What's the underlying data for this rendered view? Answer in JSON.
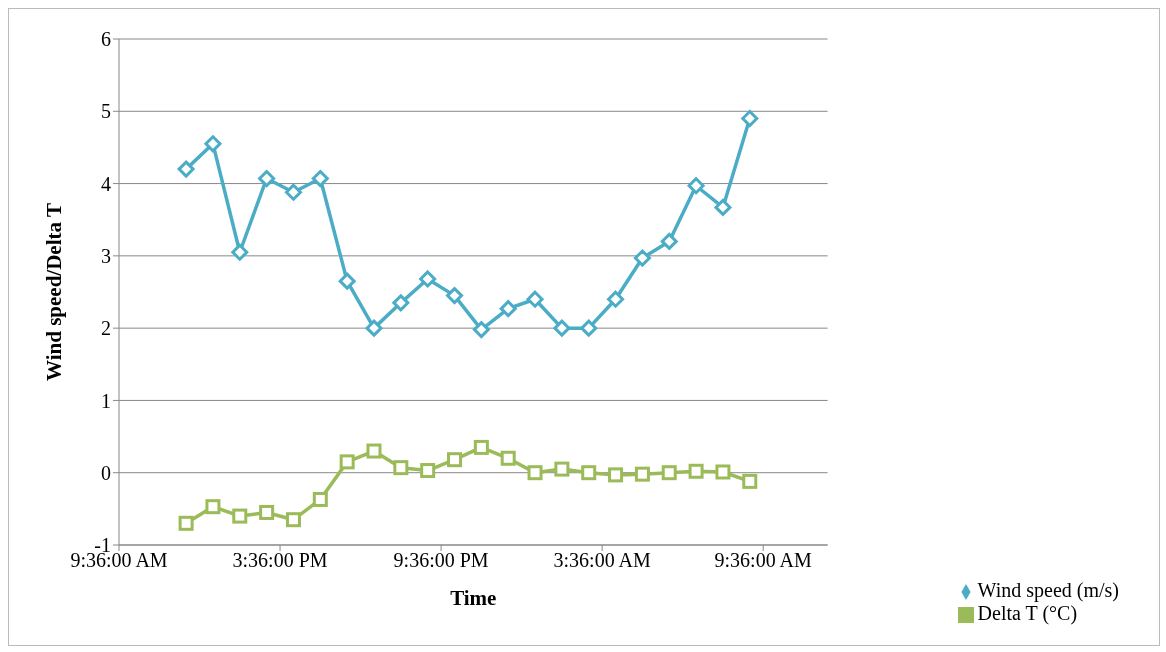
{
  "chart_data": {
    "type": "line",
    "xlabel": "Time",
    "ylabel": "Wind speed/Delta T",
    "x": [
      "--01-01T12:06",
      "--01-01T13:06",
      "--01-01T14:06",
      "--01-01T15:06",
      "--01-01T16:06",
      "--01-01T17:06",
      "--01-01T18:06",
      "--01-01T19:06",
      "--01-01T20:06",
      "--01-01T21:06",
      "--01-01T22:06",
      "--01-01T23:06",
      "--01-02T00:06",
      "--01-02T01:06",
      "--01-02T02:06",
      "--01-02T03:06",
      "--01-02T04:06",
      "--01-02T05:06",
      "--01-02T06:06",
      "--01-02T07:06",
      "--01-02T08:06",
      "--01-02T09:06"
    ],
    "series": [
      {
        "name": "Wind speed (m/s)",
        "color": "#4bacc6",
        "marker": "diamond",
        "values": [
          4.2,
          4.55,
          3.05,
          4.07,
          3.88,
          4.07,
          2.65,
          2.0,
          2.35,
          2.68,
          2.45,
          1.98,
          2.27,
          2.4,
          2.0,
          2.0,
          2.4,
          2.97,
          3.2,
          3.97,
          3.67,
          4.9
        ]
      },
      {
        "name": "Delta T (°C)",
        "color": "#9bbb59",
        "marker": "square",
        "values": [
          -0.7,
          -0.47,
          -0.6,
          -0.55,
          -0.65,
          -0.37,
          0.15,
          0.3,
          0.07,
          0.03,
          0.18,
          0.35,
          0.2,
          0.0,
          0.05,
          0.0,
          -0.03,
          -0.02,
          0.0,
          0.02,
          0.01,
          -0.12
        ]
      }
    ],
    "xlim": [
      "--01-01T09:36",
      "--01-02T12:00"
    ],
    "xticks": [
      {
        "value": "--01-01T09:36",
        "label": "9:36:00 AM"
      },
      {
        "value": "--01-01T15:36",
        "label": "3:36:00 PM"
      },
      {
        "value": "--01-01T21:36",
        "label": "9:36:00 PM"
      },
      {
        "value": "--01-02T03:36",
        "label": "3:36:00 AM"
      },
      {
        "value": "--01-02T09:36",
        "label": "9:36:00 AM"
      }
    ],
    "ylim": [
      -1,
      6
    ],
    "yticks": [
      -1,
      0,
      1,
      2,
      3,
      4,
      5,
      6
    ],
    "grid": "y",
    "legend": "bottom right",
    "line_style": "solid"
  }
}
